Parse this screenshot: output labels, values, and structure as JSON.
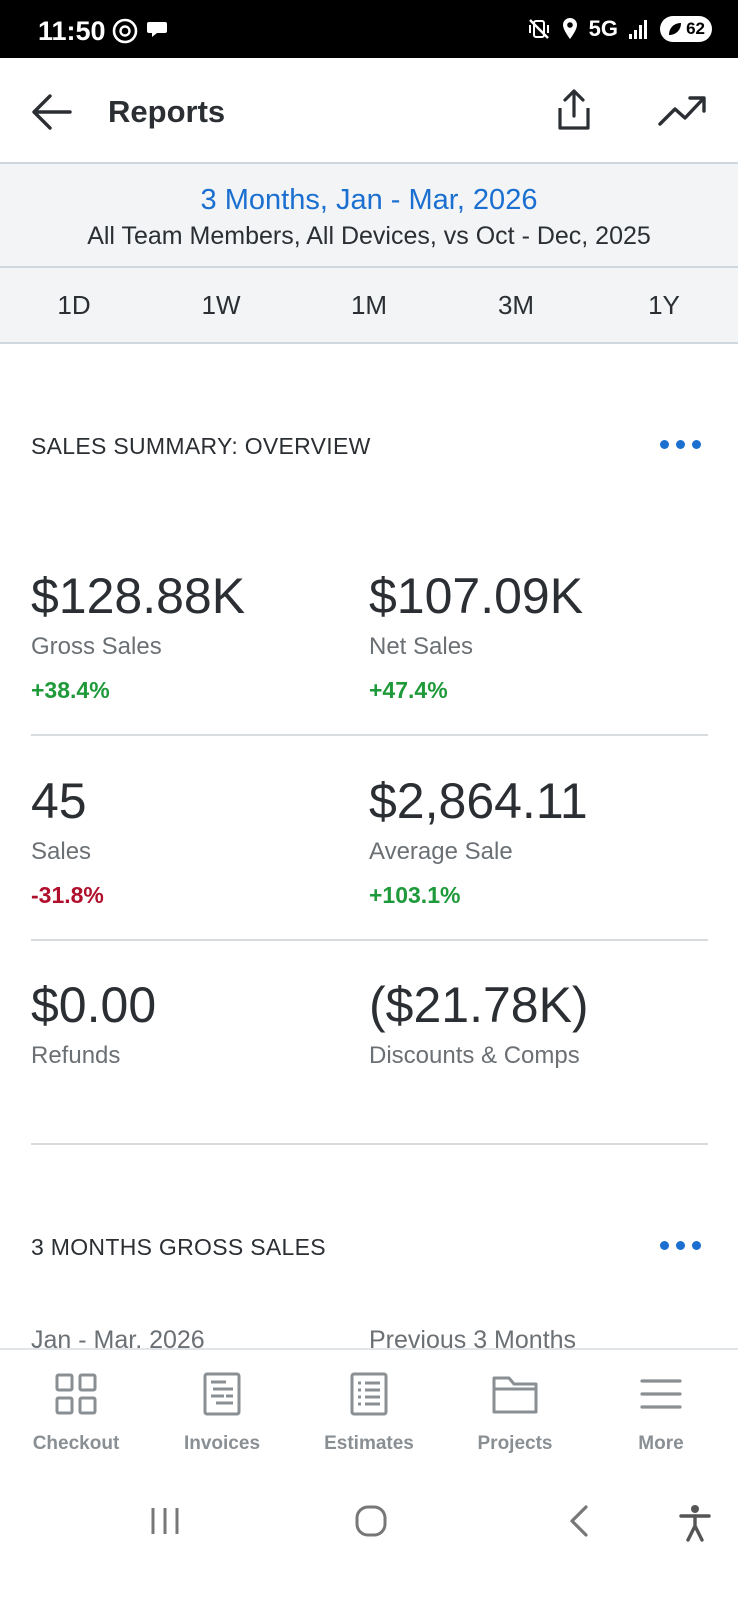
{
  "status_bar": {
    "time": "11:50",
    "network": "5G",
    "battery": "62"
  },
  "header": {
    "title": "Reports"
  },
  "range": {
    "period": "3 Months, Jan - Mar, 2026",
    "filters": "All Team Members, All Devices, vs Oct - Dec, 2025"
  },
  "tabs": [
    {
      "label": "1D"
    },
    {
      "label": "1W"
    },
    {
      "label": "1M"
    },
    {
      "label": "3M"
    },
    {
      "label": "1Y"
    }
  ],
  "sales_summary": {
    "title": "SALES SUMMARY: OVERVIEW",
    "metrics": [
      {
        "value": "$128.88K",
        "label": "Gross Sales",
        "change": "+38.4%"
      },
      {
        "value": "$107.09K",
        "label": "Net Sales",
        "change": "+47.4%"
      },
      {
        "value": "45",
        "label": "Sales",
        "change": "-31.8%"
      },
      {
        "value": "$2,864.11",
        "label": "Average Sale",
        "change": "+103.1%"
      },
      {
        "value": "$0.00",
        "label": "Refunds"
      },
      {
        "value": "($21.78K)",
        "label": "Discounts & Comps"
      }
    ]
  },
  "gross_sales": {
    "title": "3 MONTHS GROSS SALES",
    "current_label": "Jan - Mar, 2026",
    "previous_label": "Previous 3 Months"
  },
  "bottom_nav": [
    {
      "label": "Checkout",
      "icon": "grid-icon"
    },
    {
      "label": "Invoices",
      "icon": "invoice-icon"
    },
    {
      "label": "Estimates",
      "icon": "estimate-icon"
    },
    {
      "label": "Projects",
      "icon": "folder-icon"
    },
    {
      "label": "More",
      "icon": "menu-icon"
    }
  ],
  "colors": {
    "accent": "#1a6fd0",
    "positive": "#1f9a3a",
    "negative": "#b0102c"
  }
}
